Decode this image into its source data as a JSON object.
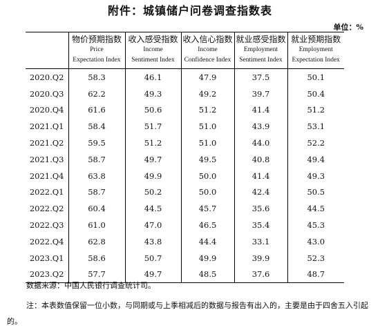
{
  "title": "附件：城镇储户问卷调查指数表",
  "unit": "单位：%",
  "columns": [
    {
      "cn": "物价预期指数",
      "en1": "Price",
      "en2": "Expectation Index"
    },
    {
      "cn": "收入感受指数",
      "en1": "Income",
      "en2": "Sentiment Index"
    },
    {
      "cn": "收入信心指数",
      "en1": "Income",
      "en2": "Confidence Index"
    },
    {
      "cn": "就业感受指数",
      "en1": "Employment",
      "en2": "Sentiment Index"
    },
    {
      "cn": "就业预期指数",
      "en1": "Employment",
      "en2": "Expectation Index"
    }
  ],
  "rows": [
    {
      "period": "2020.Q2",
      "values": [
        "58.3",
        "46.1",
        "47.9",
        "37.5",
        "50.1"
      ]
    },
    {
      "period": "2020.Q3",
      "values": [
        "62.2",
        "49.3",
        "49.2",
        "39.7",
        "50.4"
      ]
    },
    {
      "period": "2020.Q4",
      "values": [
        "61.6",
        "50.6",
        "51.2",
        "41.4",
        "51.2"
      ]
    },
    {
      "period": "2021.Q1",
      "values": [
        "58.4",
        "51.7",
        "51.0",
        "43.9",
        "53.1"
      ]
    },
    {
      "period": "2021.Q2",
      "values": [
        "59.5",
        "51.2",
        "51.0",
        "44.0",
        "52.2"
      ]
    },
    {
      "period": "2021.Q3",
      "values": [
        "58.7",
        "49.7",
        "49.5",
        "40.8",
        "49.4"
      ]
    },
    {
      "period": "2021.Q4",
      "values": [
        "63.8",
        "49.9",
        "50.0",
        "41.4",
        "49.3"
      ]
    },
    {
      "period": "2022.Q1",
      "values": [
        "58.7",
        "50.2",
        "50.0",
        "42.4",
        "50.5"
      ]
    },
    {
      "period": "2022.Q2",
      "values": [
        "60.4",
        "44.5",
        "45.7",
        "35.6",
        "44.5"
      ]
    },
    {
      "period": "2022.Q3",
      "values": [
        "61.0",
        "47.0",
        "46.5",
        "35.4",
        "45.3"
      ]
    },
    {
      "period": "2022.Q4",
      "values": [
        "62.8",
        "43.8",
        "44.4",
        "33.1",
        "43.0"
      ]
    },
    {
      "period": "2023.Q1",
      "values": [
        "58.6",
        "50.7",
        "49.9",
        "39.9",
        "52.3"
      ]
    },
    {
      "period": "2023.Q2",
      "values": [
        "57.7",
        "49.7",
        "48.5",
        "37.6",
        "48.7"
      ]
    }
  ],
  "source": "数据来源：中国人民银行调查统计司。",
  "note": "注：本表数值保留一位小数，与同期或与上季相减后的数据与报告有出入的，主要是由于四舍五入引起的。"
}
